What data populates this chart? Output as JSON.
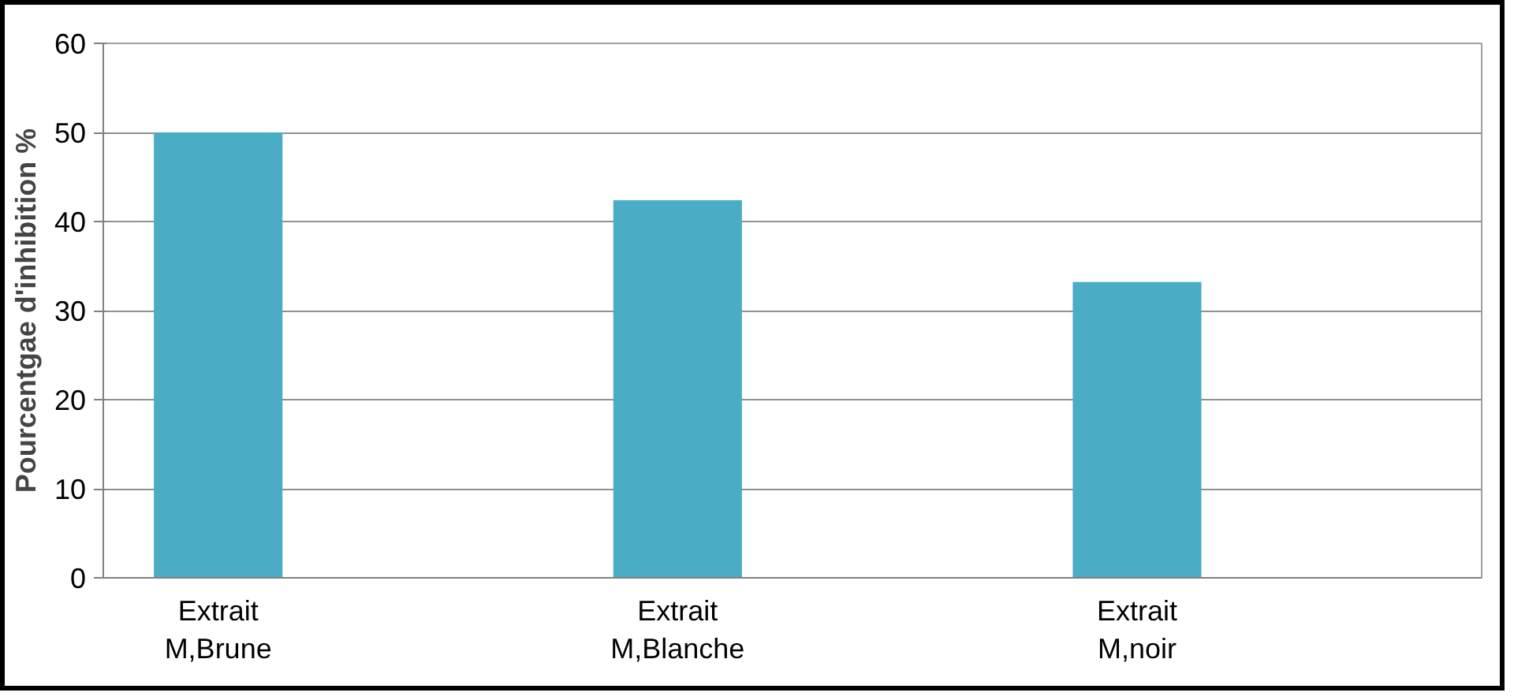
{
  "chart_data": {
    "type": "bar",
    "ylabel": "Pourcentgae d'inhibition %",
    "categories": [
      "Extrait\nM,Brune",
      "Extrait\nM,Blanche",
      "Extrait\nM,noir"
    ],
    "values": [
      50,
      42.4,
      33.2
    ],
    "color": "#4bacc6",
    "ylim": [
      0,
      60
    ],
    "yticks": [
      0,
      10,
      20,
      30,
      40,
      50,
      60
    ],
    "grid": "y"
  }
}
